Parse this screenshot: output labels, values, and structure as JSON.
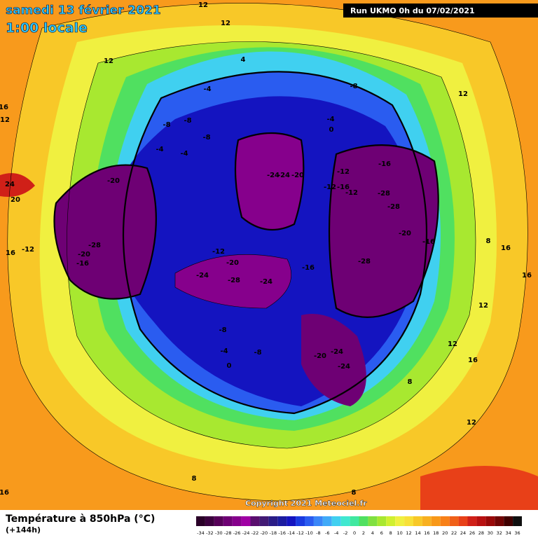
{
  "header": {
    "title": "samedi 13 février 2021",
    "subtitle": "1:00 locale",
    "run": "Run UKMO 0h du 07/02/2021"
  },
  "map": {
    "copyright": "Copyright 2021 Meteociel.fr",
    "labels": [
      "12",
      "12",
      "4",
      "12",
      "16",
      "12",
      "12",
      "-8",
      "-4",
      "-8",
      "-8",
      "-8",
      "-4",
      "-4",
      "-4",
      "0",
      "24",
      "20",
      "-20",
      "-24",
      "-24",
      "-20",
      "-12",
      "-16",
      "-12",
      "-16",
      "-12",
      "-28",
      "-28",
      "-20",
      "-16",
      "8",
      "16",
      "16",
      "-12",
      "-28",
      "-20",
      "-16",
      "-12",
      "-20",
      "-16",
      "-28",
      "-24",
      "-28",
      "-24",
      "16",
      "12",
      "-8",
      "-4",
      "-8",
      "0",
      "-24",
      "-20",
      "-24",
      "12",
      "16",
      "8",
      "12",
      "8",
      "8",
      "16"
    ]
  },
  "legend": {
    "title": "Température à 850hPa (°C)",
    "lead": "(+144h)",
    "values": [
      -34,
      -32,
      -30,
      -28,
      -26,
      -24,
      -22,
      -20,
      -18,
      -16,
      -14,
      -12,
      -10,
      -8,
      -6,
      -4,
      -2,
      0,
      2,
      4,
      6,
      8,
      10,
      12,
      14,
      16,
      18,
      20,
      22,
      24,
      26,
      28,
      30,
      32,
      34,
      36
    ],
    "colors": [
      "#2a0028",
      "#3c003e",
      "#560058",
      "#6e0074",
      "#86008c",
      "#a000a4",
      "#5a0e6e",
      "#421a74",
      "#2a1c86",
      "#1c1ca0",
      "#1414c0",
      "#1a3ae0",
      "#2a5cf0",
      "#3a86f8",
      "#40aaf8",
      "#40d0f0",
      "#40e8d0",
      "#40e8a0",
      "#50e060",
      "#80e040",
      "#a8e830",
      "#d0f030",
      "#f0f040",
      "#f8e038",
      "#f8c828",
      "#f8b020",
      "#f89818",
      "#f88018",
      "#f06018",
      "#e84018",
      "#d02018",
      "#b81010",
      "#980808",
      "#700404",
      "#400000",
      "#101010"
    ]
  }
}
